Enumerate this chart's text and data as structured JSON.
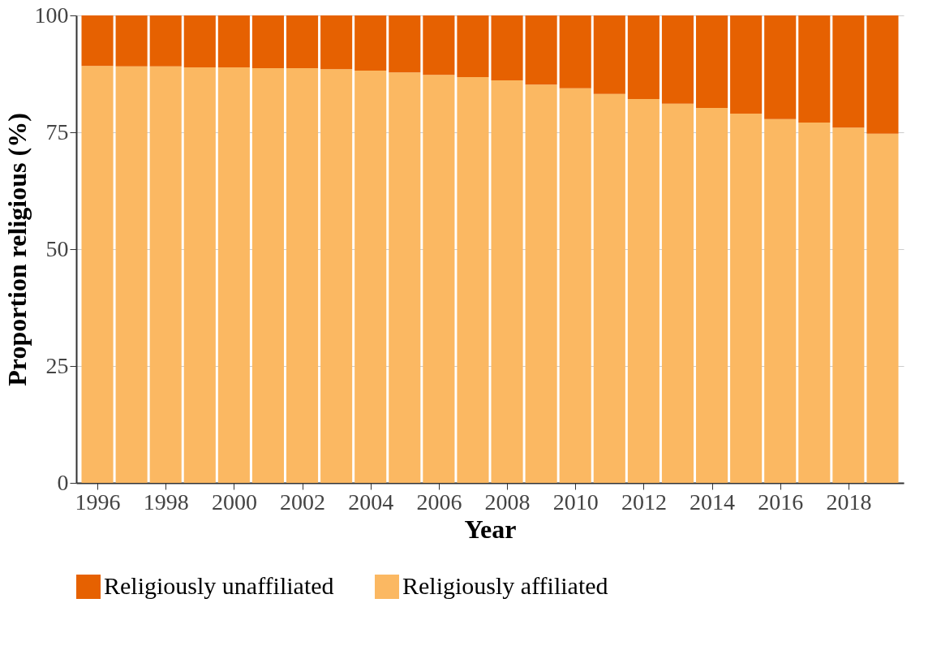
{
  "chart_data": {
    "type": "bar",
    "stacked": true,
    "xlabel": "Year",
    "ylabel": "Proportion religious (%)",
    "x": [
      1996,
      1997,
      1998,
      1999,
      2000,
      2001,
      2002,
      2003,
      2004,
      2005,
      2006,
      2007,
      2008,
      2009,
      2010,
      2011,
      2012,
      2013,
      2014,
      2015,
      2016,
      2017,
      2018,
      2019
    ],
    "series": [
      {
        "name": "Religiously affiliated",
        "color": "#fbb862",
        "values": [
          89.2,
          89.1,
          89.1,
          88.9,
          88.9,
          88.7,
          88.7,
          88.5,
          88.2,
          87.8,
          87.3,
          86.8,
          86.1,
          85.2,
          84.4,
          83.2,
          82.1,
          81.1,
          80.2,
          79.0,
          77.8,
          77.1,
          76.0,
          74.7
        ]
      },
      {
        "name": "Religiously unaffiliated",
        "color": "#e66101",
        "values": [
          10.8,
          10.9,
          10.9,
          11.1,
          11.1,
          11.3,
          11.3,
          11.5,
          11.8,
          12.2,
          12.7,
          13.2,
          13.9,
          14.8,
          15.6,
          16.8,
          17.9,
          18.9,
          19.8,
          21.0,
          22.2,
          22.9,
          24.0,
          25.3
        ]
      }
    ],
    "xlim": [
      1995.5,
      2019.5
    ],
    "xticks": [
      1996,
      1998,
      2000,
      2002,
      2004,
      2006,
      2008,
      2010,
      2012,
      2014,
      2016,
      2018
    ],
    "ylim": [
      0,
      100
    ],
    "yticks": [
      0,
      25,
      50,
      75,
      100
    ],
    "grid": "y",
    "legend": "bottom"
  }
}
